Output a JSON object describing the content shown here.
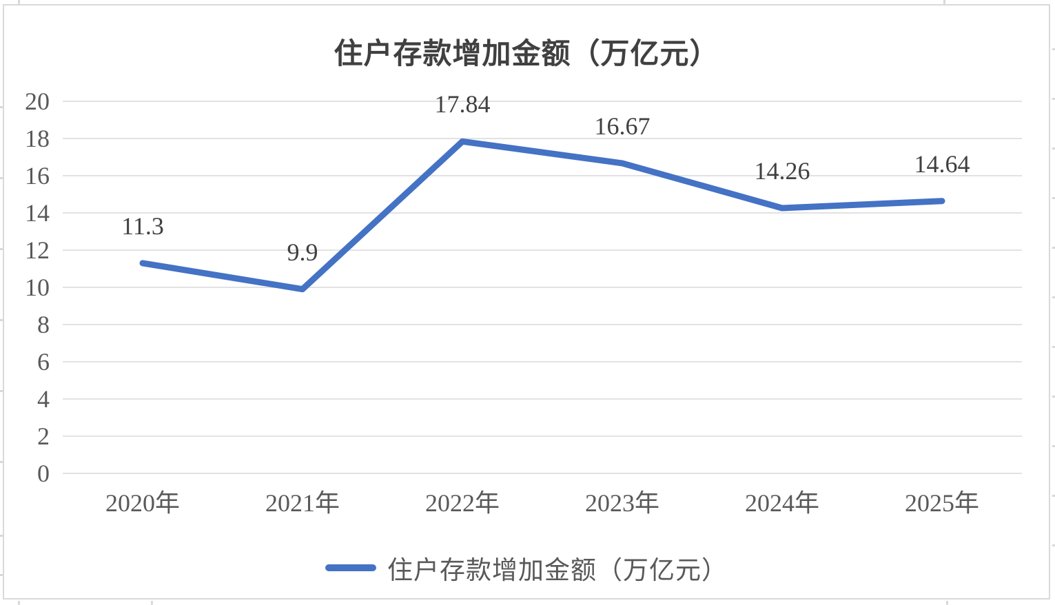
{
  "chart_data": {
    "type": "line",
    "title": "住户存款增加金额（万亿元）",
    "categories": [
      "2020年",
      "2021年",
      "2022年",
      "2023年",
      "2024年",
      "2025年"
    ],
    "series": [
      {
        "name": "住户存款增加金额（万亿元）",
        "values": [
          11.3,
          9.9,
          17.84,
          16.67,
          14.26,
          14.64
        ],
        "color": "#4472C4"
      }
    ],
    "data_labels": [
      "11.3",
      "9.9",
      "17.84",
      "16.67",
      "14.26",
      "14.64"
    ],
    "ylim": [
      0,
      20
    ],
    "ytick_step": 2,
    "yticks": [
      "0",
      "2",
      "4",
      "6",
      "8",
      "10",
      "12",
      "14",
      "16",
      "18",
      "20"
    ],
    "grid": "horizontal-only",
    "legend_position": "bottom",
    "legend_label": "住户存款增加金额（万亿元）"
  },
  "colors": {
    "line": "#4472C4",
    "title_text": "#404040",
    "axis_text": "#595959",
    "data_label_text": "#404040",
    "gridline": "#e2e2e2",
    "chart_border": "#d9d9d9"
  }
}
